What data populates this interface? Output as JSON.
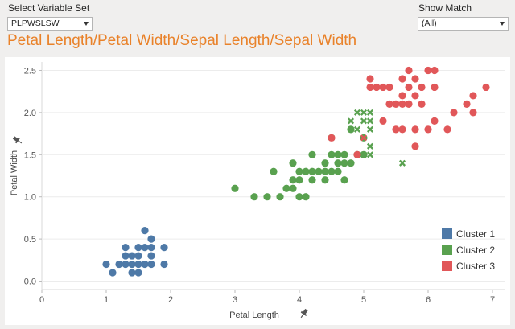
{
  "controls": {
    "variable_set": {
      "label": "Select Variable Set",
      "value": "PLPWSLSW"
    },
    "show_match": {
      "label": "Show Match",
      "value": "(All)"
    }
  },
  "title": "Petal Length/Petal Width/Sepal Length/Sepal Width",
  "colors": {
    "cluster1": "#4e79a7",
    "cluster2": "#59a14f",
    "cluster3": "#e15759"
  },
  "chart_data": {
    "type": "scatter",
    "xlabel": "Petal Length",
    "ylabel": "Petal Width",
    "xlim": [
      0,
      7.2
    ],
    "ylim": [
      -0.1,
      2.6
    ],
    "x_ticks": [
      "0",
      "1",
      "2",
      "3",
      "4",
      "5",
      "6",
      "7"
    ],
    "y_ticks": [
      "0.0",
      "0.5",
      "1.0",
      "1.5",
      "2.0",
      "2.5"
    ],
    "grid": "horizontal",
    "legend_position": "bottom-right",
    "legend": [
      "Cluster 1",
      "Cluster 2",
      "Cluster 3"
    ],
    "series": [
      {
        "name": "Cluster 1",
        "marker": "circle",
        "color": "#4e79a7",
        "points": [
          [
            1.0,
            0.2
          ],
          [
            1.1,
            0.1
          ],
          [
            1.2,
            0.2
          ],
          [
            1.3,
            0.2
          ],
          [
            1.3,
            0.3
          ],
          [
            1.3,
            0.4
          ],
          [
            1.4,
            0.1
          ],
          [
            1.4,
            0.2
          ],
          [
            1.4,
            0.3
          ],
          [
            1.5,
            0.1
          ],
          [
            1.5,
            0.2
          ],
          [
            1.5,
            0.3
          ],
          [
            1.5,
            0.4
          ],
          [
            1.6,
            0.2
          ],
          [
            1.6,
            0.4
          ],
          [
            1.6,
            0.6
          ],
          [
            1.7,
            0.2
          ],
          [
            1.7,
            0.3
          ],
          [
            1.7,
            0.4
          ],
          [
            1.7,
            0.5
          ],
          [
            1.9,
            0.2
          ],
          [
            1.9,
            0.4
          ]
        ]
      },
      {
        "name": "Cluster 2",
        "marker": "circle",
        "color": "#59a14f",
        "points": [
          [
            3.0,
            1.1
          ],
          [
            3.3,
            1.0
          ],
          [
            3.5,
            1.0
          ],
          [
            3.6,
            1.3
          ],
          [
            3.7,
            1.0
          ],
          [
            3.8,
            1.1
          ],
          [
            3.9,
            1.1
          ],
          [
            3.9,
            1.2
          ],
          [
            3.9,
            1.4
          ],
          [
            4.0,
            1.0
          ],
          [
            4.0,
            1.2
          ],
          [
            4.0,
            1.3
          ],
          [
            4.1,
            1.0
          ],
          [
            4.1,
            1.3
          ],
          [
            4.2,
            1.2
          ],
          [
            4.2,
            1.3
          ],
          [
            4.2,
            1.5
          ],
          [
            4.3,
            1.3
          ],
          [
            4.4,
            1.2
          ],
          [
            4.4,
            1.3
          ],
          [
            4.4,
            1.4
          ],
          [
            4.5,
            1.3
          ],
          [
            4.5,
            1.5
          ],
          [
            4.6,
            1.3
          ],
          [
            4.6,
            1.4
          ],
          [
            4.6,
            1.5
          ],
          [
            4.7,
            1.2
          ],
          [
            4.7,
            1.4
          ],
          [
            4.7,
            1.5
          ],
          [
            4.8,
            1.4
          ],
          [
            4.8,
            1.8
          ],
          [
            4.9,
            1.5
          ],
          [
            5.0,
            1.5
          ],
          [
            5.0,
            1.7
          ]
        ]
      },
      {
        "name": "Cluster 2",
        "marker": "x",
        "color": "#59a14f",
        "points": [
          [
            4.8,
            1.8
          ],
          [
            4.9,
            1.8
          ],
          [
            4.9,
            2.0
          ],
          [
            5.0,
            1.5
          ],
          [
            5.0,
            1.9
          ],
          [
            5.0,
            2.0
          ],
          [
            5.1,
            1.5
          ],
          [
            5.1,
            1.6
          ],
          [
            5.1,
            1.8
          ],
          [
            5.1,
            1.9
          ],
          [
            5.1,
            2.0
          ],
          [
            5.6,
            1.4
          ],
          [
            4.5,
            1.7
          ],
          [
            4.8,
            1.9
          ]
        ]
      },
      {
        "name": "Cluster 3",
        "marker": "circle",
        "color": "#e15759",
        "points": [
          [
            4.5,
            1.7
          ],
          [
            4.9,
            1.5
          ],
          [
            5.1,
            2.3
          ],
          [
            5.1,
            2.4
          ],
          [
            5.2,
            2.3
          ],
          [
            5.3,
            1.9
          ],
          [
            5.3,
            2.3
          ],
          [
            5.4,
            2.1
          ],
          [
            5.4,
            2.3
          ],
          [
            5.5,
            2.1
          ],
          [
            5.5,
            1.8
          ],
          [
            5.6,
            1.8
          ],
          [
            5.6,
            2.1
          ],
          [
            5.6,
            2.2
          ],
          [
            5.6,
            2.4
          ],
          [
            5.7,
            2.1
          ],
          [
            5.7,
            2.3
          ],
          [
            5.7,
            2.5
          ],
          [
            5.8,
            1.6
          ],
          [
            5.8,
            1.8
          ],
          [
            5.8,
            2.2
          ],
          [
            5.8,
            2.4
          ],
          [
            5.9,
            2.1
          ],
          [
            5.9,
            2.3
          ],
          [
            6.0,
            1.8
          ],
          [
            6.0,
            2.5
          ],
          [
            6.1,
            1.9
          ],
          [
            6.1,
            2.3
          ],
          [
            6.1,
            2.5
          ],
          [
            6.3,
            1.8
          ],
          [
            6.4,
            2.0
          ],
          [
            6.6,
            2.1
          ],
          [
            6.7,
            2.0
          ],
          [
            6.7,
            2.2
          ],
          [
            6.9,
            2.3
          ]
        ]
      },
      {
        "name": "Cluster 3",
        "marker": "x",
        "color": "#e15759",
        "points": [
          [
            5.0,
            1.7
          ]
        ]
      }
    ]
  }
}
